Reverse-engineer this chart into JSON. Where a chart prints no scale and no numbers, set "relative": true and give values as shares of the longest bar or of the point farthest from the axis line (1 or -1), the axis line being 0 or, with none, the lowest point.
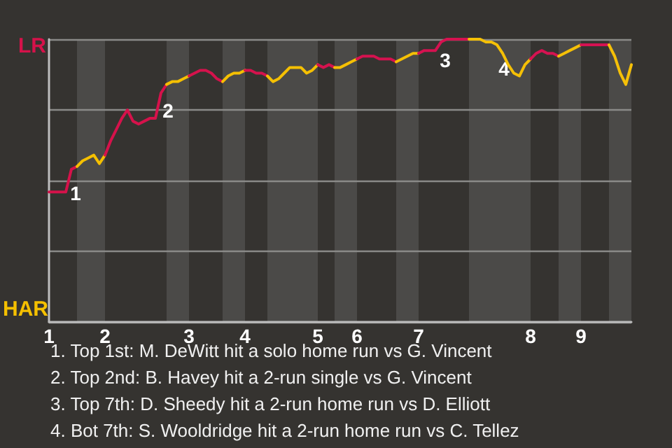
{
  "chart_data": {
    "type": "line",
    "categories": [
      "1",
      null,
      null,
      null,
      null,
      null,
      null,
      null,
      null,
      null,
      "2",
      null,
      null,
      null,
      null,
      null,
      null,
      null,
      null,
      null,
      null,
      null,
      null,
      null,
      null,
      "3",
      null,
      null,
      null,
      null,
      null,
      null,
      null,
      null,
      null,
      "4",
      null,
      null,
      null,
      null,
      null,
      null,
      null,
      null,
      null,
      null,
      null,
      null,
      "5",
      null,
      null,
      null,
      null,
      null,
      null,
      "6",
      null,
      null,
      null,
      null,
      null,
      null,
      null,
      null,
      null,
      null,
      "7",
      null,
      null,
      null,
      null,
      null,
      null,
      null,
      null,
      null,
      null,
      null,
      null,
      null,
      null,
      null,
      null,
      null,
      null,
      null,
      "8",
      null,
      null,
      null,
      null,
      null,
      null,
      null,
      null,
      "9",
      null,
      null,
      null,
      null,
      null,
      null,
      null,
      null,
      null
    ],
    "relative": true,
    "series": [
      {
        "color": "#d5124a",
        "values": [
          0.46,
          0.46,
          0.46,
          0.46,
          0.54,
          0.55,
          null,
          null,
          null,
          null,
          null,
          null,
          null,
          null,
          null,
          null,
          null,
          null,
          null,
          null,
          null,
          null,
          null,
          null,
          null,
          null,
          null,
          null,
          null,
          null,
          null,
          null,
          null,
          null,
          null,
          null,
          null,
          null,
          null,
          null,
          null,
          null,
          null,
          null,
          null,
          null,
          null,
          null,
          null,
          null,
          null,
          null,
          null,
          null,
          null,
          null,
          null,
          null,
          null,
          null,
          null,
          null,
          null,
          null,
          null,
          null,
          null,
          null,
          null,
          null,
          null,
          null,
          null,
          null,
          null,
          null,
          null,
          null,
          null,
          null,
          null,
          null,
          null,
          null,
          null,
          null,
          null,
          null,
          null,
          null,
          null,
          null,
          null,
          null,
          null,
          null,
          null,
          null,
          null,
          null,
          null,
          null,
          null,
          null,
          null
        ]
      },
      {
        "color": "#f5c000",
        "values": [
          null,
          null,
          null,
          null,
          null,
          0.55,
          0.57,
          0.58,
          0.59,
          0.56,
          0.59,
          null,
          null,
          null,
          null,
          null,
          null,
          null,
          null,
          null,
          null,
          null,
          null,
          null,
          null,
          null,
          null,
          null,
          null,
          null,
          null,
          null,
          null,
          null,
          null,
          null,
          null,
          null,
          null,
          null,
          null,
          null,
          null,
          null,
          null,
          null,
          null,
          null,
          null,
          null,
          null,
          null,
          null,
          null,
          null,
          null,
          null,
          null,
          null,
          null,
          null,
          null,
          null,
          null,
          null,
          null,
          null,
          null,
          null,
          null,
          null,
          null,
          null,
          null,
          null,
          null,
          null,
          null,
          null,
          null,
          null,
          null,
          null,
          null,
          null,
          null,
          null,
          null,
          null,
          null,
          null,
          null,
          null,
          null,
          null,
          null,
          null,
          null,
          null,
          null,
          null,
          null,
          null,
          null,
          null
        ]
      },
      {
        "color": "#d5124b",
        "values": [
          null,
          null,
          null,
          null,
          null,
          null,
          null,
          null,
          null,
          null,
          0.59,
          0.64,
          0.68,
          0.72,
          0.75,
          0.71,
          0.7,
          0.71,
          0.72,
          0.72,
          0.81,
          0.84,
          null,
          null,
          null,
          null,
          null,
          null,
          null,
          null,
          null,
          null,
          null,
          null,
          null,
          null,
          null,
          null,
          null,
          null,
          null,
          null,
          null,
          null,
          null,
          null,
          null,
          null,
          null,
          null,
          null,
          null,
          null,
          null,
          null,
          null,
          null,
          null,
          null,
          null,
          null,
          null,
          null,
          null,
          null,
          null,
          null,
          null,
          null,
          null,
          null,
          null,
          null,
          null,
          null,
          null,
          null,
          null,
          null,
          null,
          null,
          null,
          null,
          null,
          null,
          null,
          null,
          null,
          null,
          null,
          null,
          null,
          null,
          null,
          null,
          null,
          null,
          null,
          null,
          null,
          null,
          null,
          null,
          null,
          null
        ]
      },
      {
        "color": "#f5c001",
        "values": [
          null,
          null,
          null,
          null,
          null,
          null,
          null,
          null,
          null,
          null,
          null,
          null,
          null,
          null,
          null,
          null,
          null,
          null,
          null,
          null,
          null,
          0.84,
          0.85,
          0.85,
          0.86,
          0.87,
          null,
          null,
          null,
          null,
          null,
          null,
          null,
          null,
          null,
          null,
          null,
          null,
          null,
          null,
          null,
          null,
          null,
          null,
          null,
          null,
          null,
          null,
          null,
          null,
          null,
          null,
          null,
          null,
          null,
          null,
          null,
          null,
          null,
          null,
          null,
          null,
          null,
          null,
          null,
          null,
          null,
          null,
          null,
          null,
          null,
          null,
          null,
          null,
          null,
          null,
          null,
          null,
          null,
          null,
          null,
          null,
          null,
          null,
          null,
          null,
          null,
          null,
          null,
          null,
          null,
          null,
          null,
          null,
          null,
          null,
          null,
          null,
          null,
          null,
          null,
          null,
          null,
          null,
          null
        ]
      },
      {
        "color": "#d5124c",
        "values": [
          null,
          null,
          null,
          null,
          null,
          null,
          null,
          null,
          null,
          null,
          null,
          null,
          null,
          null,
          null,
          null,
          null,
          null,
          null,
          null,
          null,
          null,
          null,
          null,
          null,
          0.87,
          0.88,
          0.89,
          0.89,
          0.88,
          0.86,
          0.85,
          null,
          null,
          null,
          null,
          null,
          null,
          null,
          null,
          null,
          null,
          null,
          null,
          null,
          null,
          null,
          null,
          null,
          null,
          null,
          null,
          null,
          null,
          null,
          null,
          null,
          null,
          null,
          null,
          null,
          null,
          null,
          null,
          null,
          null,
          null,
          null,
          null,
          null,
          null,
          null,
          null,
          null,
          null,
          null,
          null,
          null,
          null,
          null,
          null,
          null,
          null,
          null,
          null,
          null,
          null,
          null,
          null,
          null,
          null,
          null,
          null,
          null,
          null,
          null,
          null,
          null,
          null,
          null,
          null,
          null,
          null,
          null,
          null
        ]
      },
      {
        "color": "#f5c002",
        "values": [
          null,
          null,
          null,
          null,
          null,
          null,
          null,
          null,
          null,
          null,
          null,
          null,
          null,
          null,
          null,
          null,
          null,
          null,
          null,
          null,
          null,
          null,
          null,
          null,
          null,
          null,
          null,
          null,
          null,
          null,
          null,
          0.85,
          0.87,
          0.88,
          0.88,
          0.89,
          null,
          null,
          null,
          null,
          null,
          null,
          null,
          null,
          null,
          null,
          null,
          null,
          null,
          null,
          null,
          null,
          null,
          null,
          null,
          null,
          null,
          null,
          null,
          null,
          null,
          null,
          null,
          null,
          null,
          null,
          null,
          null,
          null,
          null,
          null,
          null,
          null,
          null,
          null,
          null,
          null,
          null,
          null,
          null,
          null,
          null,
          null,
          null,
          null,
          null,
          null,
          null,
          null,
          null,
          null,
          null,
          null,
          null,
          null,
          null,
          null,
          null,
          null,
          null,
          null,
          null,
          null,
          null,
          null
        ]
      },
      {
        "color": "#d5124d",
        "values": [
          null,
          null,
          null,
          null,
          null,
          null,
          null,
          null,
          null,
          null,
          null,
          null,
          null,
          null,
          null,
          null,
          null,
          null,
          null,
          null,
          null,
          null,
          null,
          null,
          null,
          null,
          null,
          null,
          null,
          null,
          null,
          null,
          null,
          null,
          null,
          0.89,
          0.89,
          0.88,
          0.88,
          0.87,
          null,
          null,
          null,
          null,
          null,
          null,
          null,
          null,
          null,
          null,
          null,
          null,
          null,
          null,
          null,
          null,
          null,
          null,
          null,
          null,
          null,
          null,
          null,
          null,
          null,
          null,
          null,
          null,
          null,
          null,
          null,
          null,
          null,
          null,
          null,
          null,
          null,
          null,
          null,
          null,
          null,
          null,
          null,
          null,
          null,
          null,
          null,
          null,
          null,
          null,
          null,
          null,
          null,
          null,
          null,
          null,
          null,
          null,
          null,
          null,
          null,
          null,
          null,
          null,
          null
        ]
      },
      {
        "color": "#f5c003",
        "values": [
          null,
          null,
          null,
          null,
          null,
          null,
          null,
          null,
          null,
          null,
          null,
          null,
          null,
          null,
          null,
          null,
          null,
          null,
          null,
          null,
          null,
          null,
          null,
          null,
          null,
          null,
          null,
          null,
          null,
          null,
          null,
          null,
          null,
          null,
          null,
          null,
          null,
          null,
          null,
          0.87,
          0.85,
          0.86,
          0.88,
          0.9,
          0.9,
          0.9,
          0.88,
          0.89,
          0.91,
          null,
          null,
          null,
          null,
          null,
          null,
          null,
          null,
          null,
          null,
          null,
          null,
          null,
          null,
          null,
          null,
          null,
          null,
          null,
          null,
          null,
          null,
          null,
          null,
          null,
          null,
          null,
          null,
          null,
          null,
          null,
          null,
          null,
          null,
          null,
          null,
          null,
          null,
          null,
          null,
          null,
          null,
          null,
          null,
          null,
          null,
          null,
          null,
          null,
          null,
          null,
          null,
          null,
          null,
          null,
          null
        ]
      },
      {
        "color": "#d5124e",
        "values": [
          null,
          null,
          null,
          null,
          null,
          null,
          null,
          null,
          null,
          null,
          null,
          null,
          null,
          null,
          null,
          null,
          null,
          null,
          null,
          null,
          null,
          null,
          null,
          null,
          null,
          null,
          null,
          null,
          null,
          null,
          null,
          null,
          null,
          null,
          null,
          null,
          null,
          null,
          null,
          null,
          null,
          null,
          null,
          null,
          null,
          null,
          null,
          null,
          0.91,
          0.9,
          0.91,
          0.9,
          null,
          null,
          null,
          null,
          null,
          null,
          null,
          null,
          null,
          null,
          null,
          null,
          null,
          null,
          null,
          null,
          null,
          null,
          null,
          null,
          null,
          null,
          null,
          null,
          null,
          null,
          null,
          null,
          null,
          null,
          null,
          null,
          null,
          null,
          null,
          null,
          null,
          null,
          null,
          null,
          null,
          null,
          null,
          null,
          null,
          null,
          null,
          null,
          null,
          null,
          null,
          null,
          null
        ]
      },
      {
        "color": "#f5c004",
        "values": [
          null,
          null,
          null,
          null,
          null,
          null,
          null,
          null,
          null,
          null,
          null,
          null,
          null,
          null,
          null,
          null,
          null,
          null,
          null,
          null,
          null,
          null,
          null,
          null,
          null,
          null,
          null,
          null,
          null,
          null,
          null,
          null,
          null,
          null,
          null,
          null,
          null,
          null,
          null,
          null,
          null,
          null,
          null,
          null,
          null,
          null,
          null,
          null,
          null,
          null,
          null,
          0.9,
          0.9,
          0.91,
          0.92,
          0.93,
          null,
          null,
          null,
          null,
          null,
          null,
          null,
          null,
          null,
          null,
          null,
          null,
          null,
          null,
          null,
          null,
          null,
          null,
          null,
          null,
          null,
          null,
          null,
          null,
          null,
          null,
          null,
          null,
          null,
          null,
          null,
          null,
          null,
          null,
          null,
          null,
          null,
          null,
          null,
          null,
          null,
          null,
          null,
          null,
          null,
          null,
          null,
          null,
          null
        ]
      },
      {
        "color": "#d5124f",
        "values": [
          null,
          null,
          null,
          null,
          null,
          null,
          null,
          null,
          null,
          null,
          null,
          null,
          null,
          null,
          null,
          null,
          null,
          null,
          null,
          null,
          null,
          null,
          null,
          null,
          null,
          null,
          null,
          null,
          null,
          null,
          null,
          null,
          null,
          null,
          null,
          null,
          null,
          null,
          null,
          null,
          null,
          null,
          null,
          null,
          null,
          null,
          null,
          null,
          null,
          null,
          null,
          null,
          null,
          null,
          null,
          0.93,
          0.94,
          0.94,
          0.94,
          0.93,
          0.93,
          0.93,
          0.92,
          null,
          null,
          null,
          null,
          null,
          null,
          null,
          null,
          null,
          null,
          null,
          null,
          null,
          null,
          null,
          null,
          null,
          null,
          null,
          null,
          null,
          null,
          null,
          null,
          null,
          null,
          null,
          null,
          null,
          null,
          null,
          null,
          null,
          null,
          null,
          null,
          null,
          null,
          null,
          null,
          null,
          null
        ]
      },
      {
        "color": "#f5c005",
        "values": [
          null,
          null,
          null,
          null,
          null,
          null,
          null,
          null,
          null,
          null,
          null,
          null,
          null,
          null,
          null,
          null,
          null,
          null,
          null,
          null,
          null,
          null,
          null,
          null,
          null,
          null,
          null,
          null,
          null,
          null,
          null,
          null,
          null,
          null,
          null,
          null,
          null,
          null,
          null,
          null,
          null,
          null,
          null,
          null,
          null,
          null,
          null,
          null,
          null,
          null,
          null,
          null,
          null,
          null,
          null,
          null,
          null,
          null,
          null,
          null,
          null,
          null,
          0.92,
          0.93,
          0.94,
          0.95,
          0.95,
          null,
          null,
          null,
          null,
          null,
          null,
          null,
          null,
          null,
          null,
          null,
          null,
          null,
          null,
          null,
          null,
          null,
          null,
          null,
          null,
          null,
          null,
          null,
          null,
          null,
          null,
          null,
          null,
          null,
          null,
          null,
          null,
          null,
          null,
          null,
          null,
          null,
          null
        ]
      },
      {
        "color": "#d51250",
        "values": [
          null,
          null,
          null,
          null,
          null,
          null,
          null,
          null,
          null,
          null,
          null,
          null,
          null,
          null,
          null,
          null,
          null,
          null,
          null,
          null,
          null,
          null,
          null,
          null,
          null,
          null,
          null,
          null,
          null,
          null,
          null,
          null,
          null,
          null,
          null,
          null,
          null,
          null,
          null,
          null,
          null,
          null,
          null,
          null,
          null,
          null,
          null,
          null,
          null,
          null,
          null,
          null,
          null,
          null,
          null,
          null,
          null,
          null,
          null,
          null,
          null,
          null,
          null,
          null,
          null,
          null,
          0.95,
          0.96,
          0.96,
          0.96,
          0.99,
          1,
          1,
          1,
          1,
          1,
          null,
          null,
          null,
          null,
          null,
          null,
          null,
          null,
          null,
          null,
          null,
          null,
          null,
          null,
          null,
          null,
          null,
          null,
          null,
          null,
          null,
          null,
          null,
          null,
          null,
          null,
          null,
          null,
          null
        ]
      },
      {
        "color": "#f5c006",
        "values": [
          null,
          null,
          null,
          null,
          null,
          null,
          null,
          null,
          null,
          null,
          null,
          null,
          null,
          null,
          null,
          null,
          null,
          null,
          null,
          null,
          null,
          null,
          null,
          null,
          null,
          null,
          null,
          null,
          null,
          null,
          null,
          null,
          null,
          null,
          null,
          null,
          null,
          null,
          null,
          null,
          null,
          null,
          null,
          null,
          null,
          null,
          null,
          null,
          null,
          null,
          null,
          null,
          null,
          null,
          null,
          null,
          null,
          null,
          null,
          null,
          null,
          null,
          null,
          null,
          null,
          null,
          null,
          null,
          null,
          null,
          null,
          null,
          null,
          null,
          null,
          1,
          1,
          1,
          0.99,
          0.99,
          0.98,
          0.95,
          0.91,
          0.88,
          0.87,
          0.91,
          0.93,
          null,
          null,
          null,
          null,
          null,
          null,
          null,
          null,
          null,
          null,
          null,
          null,
          null,
          null,
          null,
          null,
          null,
          null
        ]
      },
      {
        "color": "#d51251",
        "values": [
          null,
          null,
          null,
          null,
          null,
          null,
          null,
          null,
          null,
          null,
          null,
          null,
          null,
          null,
          null,
          null,
          null,
          null,
          null,
          null,
          null,
          null,
          null,
          null,
          null,
          null,
          null,
          null,
          null,
          null,
          null,
          null,
          null,
          null,
          null,
          null,
          null,
          null,
          null,
          null,
          null,
          null,
          null,
          null,
          null,
          null,
          null,
          null,
          null,
          null,
          null,
          null,
          null,
          null,
          null,
          null,
          null,
          null,
          null,
          null,
          null,
          null,
          null,
          null,
          null,
          null,
          null,
          null,
          null,
          null,
          null,
          null,
          null,
          null,
          null,
          null,
          null,
          null,
          null,
          null,
          null,
          null,
          null,
          null,
          null,
          null,
          0.93,
          0.95,
          0.96,
          0.95,
          0.95,
          0.94,
          null,
          null,
          null,
          null,
          null,
          null,
          null,
          null,
          null,
          null,
          null,
          null,
          null
        ]
      },
      {
        "color": "#f5c007",
        "values": [
          null,
          null,
          null,
          null,
          null,
          null,
          null,
          null,
          null,
          null,
          null,
          null,
          null,
          null,
          null,
          null,
          null,
          null,
          null,
          null,
          null,
          null,
          null,
          null,
          null,
          null,
          null,
          null,
          null,
          null,
          null,
          null,
          null,
          null,
          null,
          null,
          null,
          null,
          null,
          null,
          null,
          null,
          null,
          null,
          null,
          null,
          null,
          null,
          null,
          null,
          null,
          null,
          null,
          null,
          null,
          null,
          null,
          null,
          null,
          null,
          null,
          null,
          null,
          null,
          null,
          null,
          null,
          null,
          null,
          null,
          null,
          null,
          null,
          null,
          null,
          null,
          null,
          null,
          null,
          null,
          null,
          null,
          null,
          null,
          null,
          null,
          null,
          null,
          null,
          null,
          null,
          0.94,
          0.95,
          0.96,
          0.97,
          0.98,
          null,
          null,
          null,
          null,
          null,
          null,
          null,
          null,
          null
        ]
      },
      {
        "color": "#d51252",
        "values": [
          null,
          null,
          null,
          null,
          null,
          null,
          null,
          null,
          null,
          null,
          null,
          null,
          null,
          null,
          null,
          null,
          null,
          null,
          null,
          null,
          null,
          null,
          null,
          null,
          null,
          null,
          null,
          null,
          null,
          null,
          null,
          null,
          null,
          null,
          null,
          null,
          null,
          null,
          null,
          null,
          null,
          null,
          null,
          null,
          null,
          null,
          null,
          null,
          null,
          null,
          null,
          null,
          null,
          null,
          null,
          null,
          null,
          null,
          null,
          null,
          null,
          null,
          null,
          null,
          null,
          null,
          null,
          null,
          null,
          null,
          null,
          null,
          null,
          null,
          null,
          null,
          null,
          null,
          null,
          null,
          null,
          null,
          null,
          null,
          null,
          null,
          null,
          null,
          null,
          null,
          null,
          null,
          null,
          null,
          null,
          0.98,
          0.98,
          0.98,
          0.98,
          0.98,
          0.98,
          null,
          null,
          null,
          null
        ]
      },
      {
        "color": "#f5c008",
        "values": [
          null,
          null,
          null,
          null,
          null,
          null,
          null,
          null,
          null,
          null,
          null,
          null,
          null,
          null,
          null,
          null,
          null,
          null,
          null,
          null,
          null,
          null,
          null,
          null,
          null,
          null,
          null,
          null,
          null,
          null,
          null,
          null,
          null,
          null,
          null,
          null,
          null,
          null,
          null,
          null,
          null,
          null,
          null,
          null,
          null,
          null,
          null,
          null,
          null,
          null,
          null,
          null,
          null,
          null,
          null,
          null,
          null,
          null,
          null,
          null,
          null,
          null,
          null,
          null,
          null,
          null,
          null,
          null,
          null,
          null,
          null,
          null,
          null,
          null,
          null,
          null,
          null,
          null,
          null,
          null,
          null,
          null,
          null,
          null,
          null,
          null,
          null,
          null,
          null,
          null,
          null,
          null,
          null,
          null,
          null,
          null,
          null,
          null,
          null,
          null,
          0.98,
          0.94,
          0.88,
          0.84,
          0.91
        ]
      }
    ],
    "grid": "y",
    "marker": "none",
    "annotations": [
      "LR",
      "HAR",
      "1",
      "2",
      "3",
      "4",
      "1. Top 1st: M. DeWitt hit a solo home run vs G. Vincent",
      "2. Top 2nd: B. Havey hit a 2-run single vs G. Vincent",
      "3. Top 7th: D. Sheedy hit a 2-run home run vs D. Elliott",
      "4. Bot 7th: S. Wooldridge hit a 2-run home run vs C. Tellez"
    ]
  }
}
